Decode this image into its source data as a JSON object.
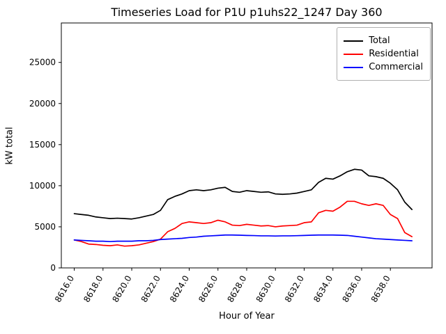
{
  "chart_data": {
    "type": "line",
    "title": "Timeseries Load for P1U p1uhs22_1247  Day 360",
    "xlabel": "Hour of Year",
    "ylabel": "kW total",
    "xlim": [
      8615.1,
      8640.9
    ],
    "ylim": [
      0,
      29800
    ],
    "grid": false,
    "legend_position": "upper right",
    "xticks": {
      "values": [
        8616,
        8618,
        8620,
        8622,
        8624,
        8626,
        8628,
        8630,
        8632,
        8634,
        8636,
        8638
      ],
      "labels": [
        "8616.0",
        "8618.0",
        "8620.0",
        "8622.0",
        "8624.0",
        "8626.0",
        "8628.0",
        "8630.0",
        "8632.0",
        "8634.0",
        "8636.0",
        "8638.0"
      ]
    },
    "yticks": {
      "values": [
        0,
        5000,
        10000,
        15000,
        20000,
        25000
      ],
      "labels": [
        "0",
        "5000",
        "10000",
        "15000",
        "20000",
        "25000"
      ]
    },
    "x": [
      8616.0,
      8616.5,
      8617.0,
      8617.5,
      8618.0,
      8618.5,
      8619.0,
      8619.5,
      8620.0,
      8620.5,
      8621.0,
      8621.5,
      8622.0,
      8622.5,
      8623.0,
      8623.5,
      8624.0,
      8624.5,
      8625.0,
      8625.5,
      8626.0,
      8626.5,
      8627.0,
      8627.5,
      8628.0,
      8628.5,
      8629.0,
      8629.5,
      8630.0,
      8630.5,
      8631.0,
      8631.5,
      8632.0,
      8632.5,
      8633.0,
      8633.5,
      8634.0,
      8634.5,
      8635.0,
      8635.5,
      8636.0,
      8636.5,
      8637.0,
      8637.5,
      8638.0,
      8638.5,
      8639.0,
      8639.5
    ],
    "series": [
      {
        "name": "Total",
        "color": "#000000",
        "values": [
          6600,
          6500,
          6400,
          6200,
          6100,
          6000,
          6050,
          6000,
          5950,
          6100,
          6300,
          6500,
          7000,
          8300,
          8700,
          9000,
          9400,
          9500,
          9400,
          9500,
          9700,
          9800,
          9300,
          9200,
          9400,
          9300,
          9200,
          9250,
          9000,
          8950,
          9000,
          9100,
          9300,
          9500,
          10400,
          10900,
          10800,
          11200,
          11700,
          12000,
          11900,
          11200,
          11100,
          10900,
          10300,
          9500,
          8000,
          7100
        ]
      },
      {
        "name": "Residential",
        "color": "#ff0000",
        "values": [
          3400,
          3200,
          2900,
          2850,
          2750,
          2700,
          2800,
          2650,
          2700,
          2800,
          3000,
          3200,
          3500,
          4400,
          4800,
          5400,
          5600,
          5500,
          5400,
          5500,
          5800,
          5600,
          5200,
          5150,
          5300,
          5200,
          5100,
          5150,
          5000,
          5100,
          5150,
          5200,
          5500,
          5600,
          6700,
          7000,
          6900,
          7400,
          8100,
          8100,
          7800,
          7600,
          7800,
          7600,
          6500,
          6000,
          4300,
          3800
        ]
      },
      {
        "name": "Commercial",
        "color": "#0000ff",
        "values": [
          3400,
          3350,
          3300,
          3250,
          3250,
          3200,
          3250,
          3250,
          3250,
          3300,
          3300,
          3350,
          3450,
          3500,
          3550,
          3600,
          3700,
          3750,
          3850,
          3900,
          3950,
          4000,
          4000,
          3980,
          3950,
          3930,
          3900,
          3900,
          3880,
          3900,
          3900,
          3920,
          3950,
          3980,
          4000,
          4000,
          4000,
          3980,
          3950,
          3850,
          3750,
          3650,
          3550,
          3500,
          3450,
          3400,
          3350,
          3300
        ]
      }
    ]
  }
}
